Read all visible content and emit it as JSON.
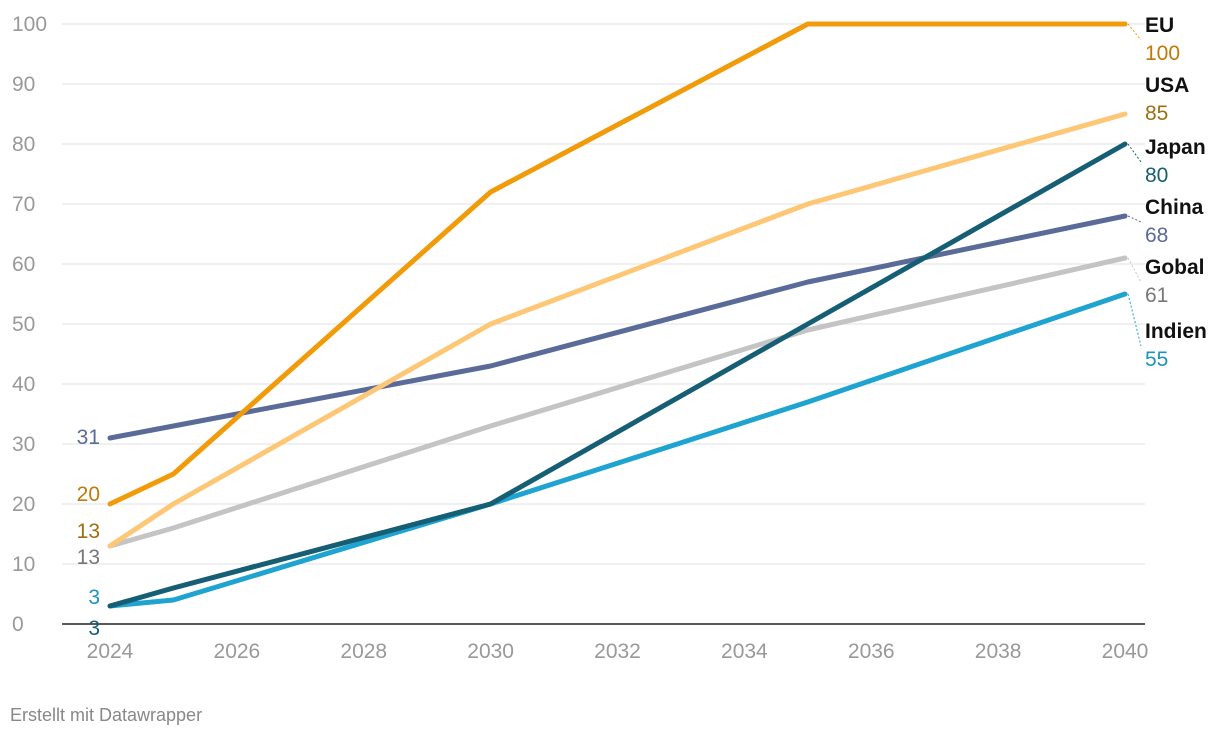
{
  "chart_data": {
    "type": "line",
    "title": "",
    "xlabel": "",
    "ylabel": "",
    "x": [
      2024,
      2025,
      2030,
      2035,
      2040
    ],
    "xlim": [
      2024,
      2040
    ],
    "xticks": [
      "2024",
      "2026",
      "2028",
      "2030",
      "2032",
      "2034",
      "2036",
      "2038",
      "2040"
    ],
    "ylim": [
      0,
      100
    ],
    "yticks": [
      "0",
      "10",
      "20",
      "30",
      "40",
      "50",
      "60",
      "70",
      "80",
      "90",
      "100"
    ],
    "grid": true,
    "legend": "direct-labels-right",
    "series": [
      {
        "name": "Gobal",
        "color": "#c4c4c4",
        "label_color": "#777777",
        "values": [
          13,
          16,
          33,
          49,
          61
        ],
        "start_label": "13",
        "end_label": "61"
      },
      {
        "name": "Indien",
        "color": "#1fa3d1",
        "label_color": "#1d93be",
        "values": [
          3,
          4,
          20,
          37,
          55
        ],
        "start_label": "3",
        "end_label": "55"
      },
      {
        "name": "China",
        "color": "#5a6b99",
        "label_color": "#5a6b99",
        "values": [
          31,
          33,
          43,
          57,
          68
        ],
        "start_label": "31",
        "end_label": "68"
      },
      {
        "name": "USA",
        "color": "#fdc776",
        "label_color": "#9e6f12",
        "values": [
          13,
          20,
          50,
          70,
          85
        ],
        "start_label": "13",
        "end_label": "85"
      },
      {
        "name": "Japan",
        "color": "#165e74",
        "label_color": "#165e74",
        "values": [
          3,
          6,
          20,
          50,
          80
        ],
        "start_label": "3",
        "end_label": "80"
      },
      {
        "name": "EU",
        "color": "#f29b0a",
        "label_color": "#c07a08",
        "values": [
          20,
          25,
          72,
          100,
          100
        ],
        "start_label": "20",
        "end_label": "100"
      }
    ]
  },
  "credit": "Erstellt mit Datawrapper"
}
